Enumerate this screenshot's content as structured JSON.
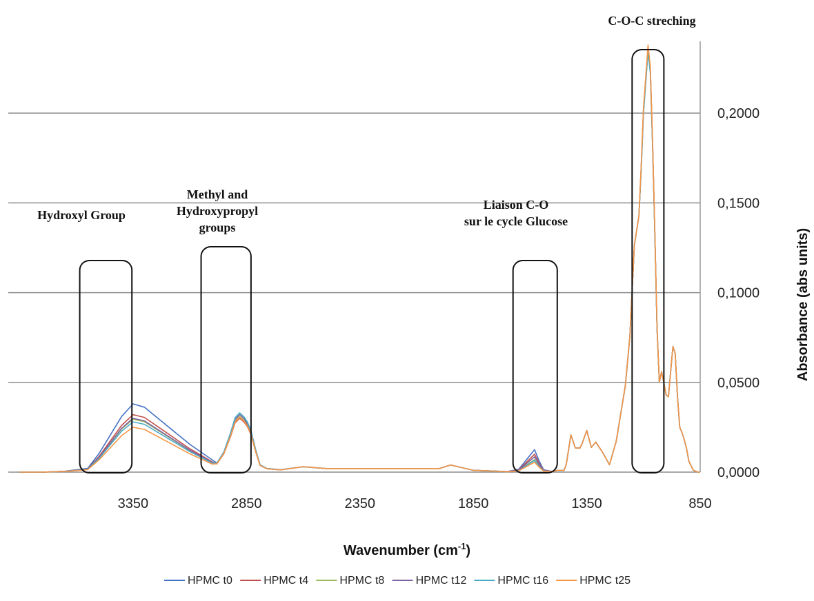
{
  "chart_data": {
    "type": "line",
    "title": "",
    "xlabel": "Wavenumber (cm",
    "xlabel_sup": "-1",
    "xlabel_close": ")",
    "ylabel": "Absorbance (abs units)",
    "xlim": [
      3900,
      850
    ],
    "x_reversed": true,
    "ylim": [
      0,
      0.24
    ],
    "x_ticks": [
      3350,
      2850,
      2350,
      1850,
      1350,
      850
    ],
    "x_tick_labels": [
      "3350",
      "2850",
      "2350",
      "1850",
      "1350",
      "850"
    ],
    "y_ticks": [
      0,
      0.05,
      0.1,
      0.15,
      0.2
    ],
    "y_tick_labels": [
      "0,0000",
      "0,0500",
      "0,1000",
      "0,1500",
      "0,2000"
    ],
    "grid": "horizontal",
    "legend_position": "bottom",
    "x": [
      3850,
      3750,
      3650,
      3550,
      3500,
      3450,
      3400,
      3350,
      3300,
      3200,
      3100,
      3000,
      2980,
      2950,
      2920,
      2900,
      2880,
      2860,
      2845,
      2830,
      2810,
      2790,
      2760,
      2700,
      2600,
      2500,
      2300,
      2100,
      2000,
      1950,
      1900,
      1850,
      1800,
      1700,
      1650,
      1620,
      1580,
      1560,
      1540,
      1500,
      1480,
      1450,
      1440,
      1420,
      1400,
      1380,
      1370,
      1350,
      1330,
      1310,
      1280,
      1250,
      1220,
      1180,
      1160,
      1140,
      1120,
      1110,
      1100,
      1080,
      1070,
      1060,
      1050,
      1040,
      1030,
      1020,
      1000,
      990,
      980,
      970,
      960,
      950,
      940,
      930,
      920,
      910,
      900,
      880,
      860,
      850
    ],
    "base_profile": [
      0,
      0,
      0.001,
      0.004,
      0.02,
      0.04,
      0.06,
      0.0735,
      0.07,
      0.05,
      0.03,
      0.013,
      0.015,
      0.033,
      0.065,
      0.09,
      0.098,
      0.091,
      0.082,
      0.068,
      0.038,
      0.012,
      0.006,
      0.004,
      0.003,
      0.002,
      0.002,
      0.002,
      0.002,
      0.004,
      0.0025,
      0.001,
      0.0008,
      0.001,
      0.005,
      0.02,
      0.04,
      0.02,
      0.004,
      0.001,
      0.001,
      0.001,
      0.0045,
      0.0207,
      0.0134,
      0.0134,
      0.0161,
      0.0232,
      0.0138,
      0.0167,
      0.011,
      0.0041,
      0.0172,
      0.0482,
      0.0758,
      0.1264,
      0.1428,
      0.17,
      0.2019,
      0.2368,
      0.225,
      0.185,
      0.135,
      0.08,
      0.05,
      0.056,
      0.043,
      0.042,
      0.056,
      0.07,
      0.066,
      0.042,
      0.025,
      0.022,
      0.018,
      0.013,
      0.006,
      0.001,
      0,
      0
    ],
    "series": [
      {
        "name": "HPMC t0",
        "color": "#4472C4",
        "r_oh": 0.038,
        "r_ch": 0.033,
        "r_co": 0.0125,
        "r_coc": 0.235
      },
      {
        "name": "HPMC t4",
        "color": "#C0504D",
        "r_oh": 0.032,
        "r_ch": 0.03,
        "r_co": 0.01,
        "r_coc": 0.237
      },
      {
        "name": "HPMC t8",
        "color": "#9BBB59",
        "r_oh": 0.0295,
        "r_ch": 0.031,
        "r_co": 0.007,
        "r_coc": 0.236
      },
      {
        "name": "HPMC t12",
        "color": "#8064A2",
        "r_oh": 0.03,
        "r_ch": 0.032,
        "r_co": 0.0085,
        "r_coc": 0.236
      },
      {
        "name": "HPMC t16",
        "color": "#4BACC6",
        "r_oh": 0.028,
        "r_ch": 0.033,
        "r_co": 0.0065,
        "r_coc": 0.234
      },
      {
        "name": "HPMC t25",
        "color": "#F79646",
        "r_oh": 0.025,
        "r_ch": 0.0305,
        "r_co": 0.0055,
        "r_coc": 0.238
      }
    ],
    "annotations": [
      {
        "id": "hydroxyl",
        "lines": [
          "Hydroxyl Group"
        ],
        "x_range": [
          3585,
          3355
        ]
      },
      {
        "id": "methyl",
        "lines": [
          "Methyl and",
          "Hydroxypropyl",
          "groups"
        ],
        "x_range": [
          3050,
          2830
        ]
      },
      {
        "id": "co",
        "lines": [
          "Liaison C-O",
          "sur le cycle Glucose"
        ],
        "x_range": [
          1675,
          1480
        ]
      },
      {
        "id": "coc",
        "lines": [
          "C-O-C streching"
        ],
        "x_range": [
          1150,
          1010
        ]
      }
    ]
  }
}
